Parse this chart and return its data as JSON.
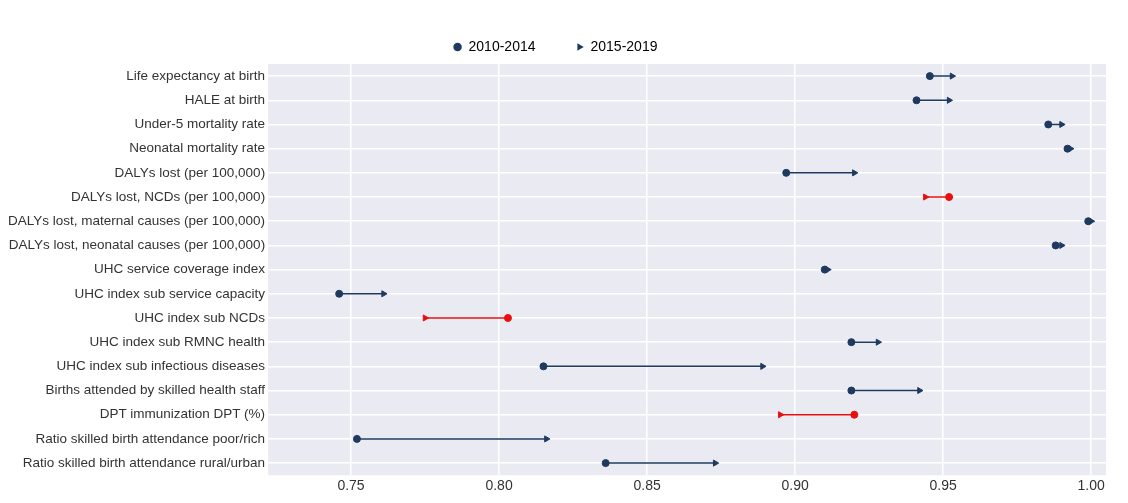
{
  "chart_data": {
    "type": "scatter",
    "orientation": "horizontal",
    "legend": "top",
    "grid": true,
    "categories": [
      "Life expectancy at birth",
      "HALE at birth",
      "Under-5 mortality rate",
      "Neonatal mortality rate",
      "DALYs lost (per 100,000)",
      "DALYs lost, NCDs (per 100,000)",
      "DALYs lost, maternal causes (per 100,000)",
      "DALYs lost, neonatal causes (per 100,000)",
      "UHC service coverage index",
      "UHC index sub service capacity",
      "UHC index sub NCDs",
      "UHC index sub RMNC health",
      "UHC index sub infectious diseases",
      "Births attended by skilled health staff",
      "DPT immunization DPT (%)",
      "Ratio skilled birth attendance poor/rich",
      "Ratio skilled birth attendance rural/urban"
    ],
    "xlim": [
      0.722,
      1.005
    ],
    "xticks": [
      {
        "value": 0.75,
        "label": "0.75"
      },
      {
        "value": 0.8,
        "label": "0.80"
      },
      {
        "value": 0.85,
        "label": "0.85"
      },
      {
        "value": 0.9,
        "label": "0.90"
      },
      {
        "value": 0.95,
        "label": "0.95"
      },
      {
        "value": 1,
        "label": "1.00"
      }
    ],
    "series": [
      {
        "name": "2010-2014",
        "marker": "circle",
        "color": "#1f3a5f",
        "colors": [
          "#1f3a5f",
          "#1f3a5f",
          "#1f3a5f",
          "#1f3a5f",
          "#1f3a5f",
          "#e8100f",
          "#1f3a5f",
          "#1f3a5f",
          "#1f3a5f",
          "#1f3a5f",
          "#e8100f",
          "#1f3a5f",
          "#1f3a5f",
          "#1f3a5f",
          "#e8100f",
          "#1f3a5f",
          "#1f3a5f"
        ],
        "values": [
          0.9455,
          0.941,
          0.9855,
          0.992,
          0.897,
          0.952,
          0.999,
          0.988,
          0.91,
          0.746,
          0.803,
          0.919,
          0.815,
          0.919,
          0.92,
          0.752,
          0.836
        ]
      },
      {
        "name": "2015-2019",
        "marker": "triangle",
        "color": "#1f3a5f",
        "colors": [
          "#1f3a5f",
          "#1f3a5f",
          "#1f3a5f",
          "#1f3a5f",
          "#1f3a5f",
          "#e8100f",
          "#1f3a5f",
          "#1f3a5f",
          "#1f3a5f",
          "#1f3a5f",
          "#e8100f",
          "#1f3a5f",
          "#1f3a5f",
          "#1f3a5f",
          "#e8100f",
          "#1f3a5f",
          "#1f3a5f"
        ],
        "values": [
          0.953,
          0.952,
          0.99,
          0.993,
          0.92,
          0.944,
          1.0,
          0.99,
          0.911,
          0.761,
          0.775,
          0.928,
          0.889,
          0.942,
          0.895,
          0.816,
          0.873
        ]
      }
    ]
  }
}
